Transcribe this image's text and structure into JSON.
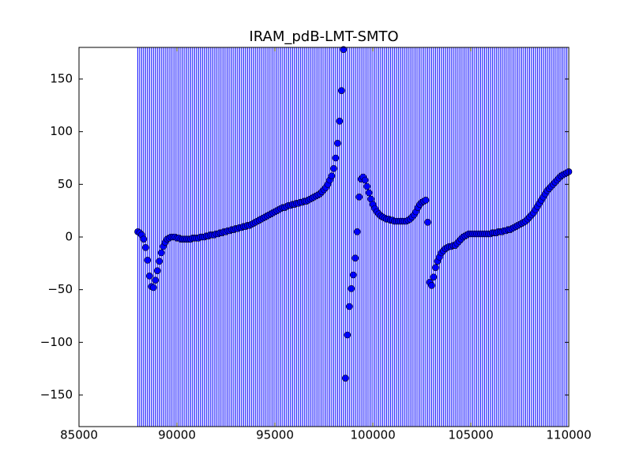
{
  "chart_data": {
    "type": "scatter",
    "title": "IRAM_pdB-LMT-SMTO",
    "xlim": [
      85000,
      110000
    ],
    "xticks": [
      85000,
      90000,
      95000,
      100000,
      105000,
      110000
    ],
    "ylim": [
      -180,
      180
    ],
    "yticks": [
      {
        "value": -150,
        "label": "−150"
      },
      {
        "value": -100,
        "label": "−100"
      },
      {
        "value": -50,
        "label": "−50"
      },
      0,
      50,
      100,
      150
    ],
    "vlines": true,
    "series": [
      {
        "color": "#0000ff",
        "x": [
          88000,
          88100,
          88200,
          88300,
          88400,
          88500,
          88600,
          88700,
          88800,
          88900,
          89000,
          89100,
          89200,
          89300,
          89400,
          89500,
          89600,
          89700,
          89800,
          89900,
          90000,
          90100,
          90200,
          90300,
          90400,
          90500,
          90600,
          90700,
          90800,
          90900,
          91000,
          91100,
          91200,
          91300,
          91400,
          91500,
          91600,
          91700,
          91800,
          91900,
          92000,
          92100,
          92200,
          92300,
          92400,
          92500,
          92600,
          92700,
          92800,
          92900,
          93000,
          93100,
          93200,
          93300,
          93400,
          93500,
          93600,
          93700,
          93800,
          93900,
          94000,
          94100,
          94200,
          94300,
          94400,
          94500,
          94600,
          94700,
          94800,
          94900,
          95000,
          95100,
          95200,
          95300,
          95400,
          95500,
          95600,
          95700,
          95800,
          95900,
          96000,
          96100,
          96200,
          96300,
          96400,
          96500,
          96600,
          96700,
          96800,
          96900,
          97000,
          97100,
          97200,
          97300,
          97400,
          97500,
          97600,
          97700,
          97800,
          97900,
          98000,
          98100,
          98200,
          98300,
          98400,
          98500,
          98600,
          98700,
          98800,
          98900,
          99000,
          99100,
          99200,
          99300,
          99400,
          99500,
          99600,
          99700,
          99800,
          99900,
          100000,
          100100,
          100200,
          100300,
          100400,
          100500,
          100600,
          100700,
          100800,
          100900,
          101000,
          101100,
          101200,
          101300,
          101400,
          101500,
          101600,
          101700,
          101800,
          101900,
          102000,
          102100,
          102200,
          102300,
          102400,
          102500,
          102600,
          102700,
          102800,
          102900,
          103000,
          103100,
          103200,
          103300,
          103400,
          103500,
          103600,
          103700,
          103800,
          103900,
          104000,
          104100,
          104200,
          104300,
          104400,
          104500,
          104600,
          104700,
          104800,
          104900,
          105000,
          105100,
          105200,
          105300,
          105400,
          105500,
          105600,
          105700,
          105800,
          105900,
          106000,
          106100,
          106200,
          106300,
          106400,
          106500,
          106600,
          106700,
          106800,
          106900,
          107000,
          107100,
          107200,
          107300,
          107400,
          107500,
          107600,
          107700,
          107800,
          107900,
          108000,
          108100,
          108200,
          108300,
          108400,
          108500,
          108600,
          108700,
          108800,
          108900,
          109000,
          109100,
          109200,
          109300,
          109400,
          109500,
          109600,
          109700,
          109800,
          109900,
          110000
        ],
        "values": [
          5,
          4,
          2,
          -2,
          -10,
          -22,
          -37,
          -47,
          -48,
          -41,
          -32,
          -23,
          -15,
          -9,
          -5,
          -2,
          -1,
          0,
          0,
          0,
          -1,
          -1,
          -2,
          -2,
          -2,
          -2,
          -2,
          -2,
          -1,
          -1,
          -1,
          -1,
          0,
          0,
          0,
          1,
          1,
          2,
          2,
          2,
          3,
          3,
          4,
          4,
          5,
          5,
          6,
          6,
          7,
          7,
          8,
          8,
          9,
          9,
          10,
          10,
          11,
          11,
          12,
          13,
          14,
          15,
          16,
          17,
          18,
          19,
          20,
          21,
          22,
          23,
          24,
          25,
          26,
          27,
          28,
          28,
          29,
          30,
          30,
          31,
          31,
          32,
          32,
          33,
          33,
          34,
          34,
          35,
          36,
          37,
          38,
          39,
          40,
          41,
          43,
          45,
          47,
          50,
          54,
          58,
          65,
          75,
          89,
          110,
          139,
          178,
          -134,
          -93,
          -66,
          -49,
          -36,
          -20,
          5,
          38,
          55,
          57,
          54,
          48,
          42,
          36,
          31,
          27,
          24,
          22,
          20,
          19,
          18,
          17,
          17,
          16,
          16,
          15,
          15,
          15,
          15,
          15,
          15,
          15,
          16,
          17,
          19,
          21,
          24,
          28,
          31,
          33,
          34,
          35,
          14,
          -43,
          -46,
          -38,
          -29,
          -23,
          -19,
          -15,
          -13,
          -11,
          -10,
          -9,
          -9,
          -8,
          -8,
          -6,
          -4,
          -2,
          0,
          1,
          2,
          3,
          3,
          3,
          3,
          3,
          3,
          3,
          3,
          3,
          3,
          3,
          3,
          4,
          4,
          4,
          5,
          5,
          5,
          6,
          6,
          7,
          7,
          8,
          9,
          10,
          11,
          12,
          13,
          14,
          15,
          17,
          19,
          21,
          23,
          26,
          29,
          32,
          35,
          38,
          41,
          44,
          46,
          48,
          50,
          52,
          54,
          56,
          58,
          59,
          60,
          61,
          62
        ]
      }
    ]
  }
}
